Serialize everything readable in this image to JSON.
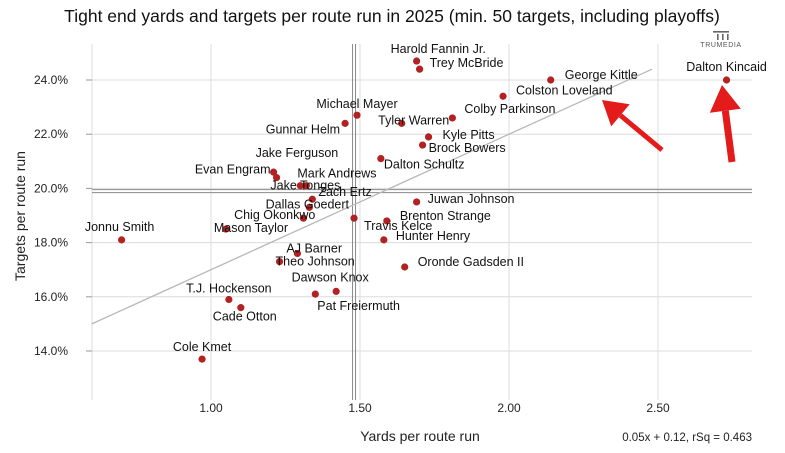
{
  "chart_data": {
    "type": "scatter",
    "title": "Tight end yards and targets per route run in 2025 (min. 50 targets, including playoffs)",
    "xlabel": "Yards per route run",
    "ylabel": "Targets per route run",
    "xlim": [
      0.6,
      2.8
    ],
    "ylim": [
      13.2,
      25.0
    ],
    "xticks": [
      1.0,
      1.5,
      2.0,
      2.5
    ],
    "xtick_labels": [
      "1.00",
      "1.50",
      "2.00",
      "2.50"
    ],
    "yticks": [
      14,
      16,
      18,
      20,
      22,
      24
    ],
    "ytick_labels": [
      "14.0%",
      "16.0%",
      "18.0%",
      "20.0%",
      "22.0%",
      "24.0%"
    ],
    "reference_lines": {
      "x_mean": 1.48,
      "y_mean": 19.9
    },
    "trendline": {
      "slope": 5.0,
      "intercept": 12.0,
      "equation": "0.05x + 0.12, rSq = 0.463"
    },
    "point_color": "#b22222",
    "arrow_color": "#e31b1b",
    "logo_text": "TRUMEDIA",
    "points": [
      {
        "name": "Harold Fannin Jr.",
        "x": 1.69,
        "y": 24.7
      },
      {
        "name": "Trey McBride",
        "x": 1.7,
        "y": 24.4
      },
      {
        "name": "George Kittle",
        "x": 2.14,
        "y": 24.0
      },
      {
        "name": "Dalton Kincaid",
        "x": 2.73,
        "y": 24.0
      },
      {
        "name": "Colston Loveland",
        "x": 1.98,
        "y": 23.4
      },
      {
        "name": "Michael Mayer",
        "x": 1.49,
        "y": 22.7
      },
      {
        "name": "Colby Parkinson",
        "x": 1.81,
        "y": 22.6
      },
      {
        "name": "Tyler Warren",
        "x": 1.64,
        "y": 22.4
      },
      {
        "name": "Gunnar Helm",
        "x": 1.45,
        "y": 22.4
      },
      {
        "name": "Kyle Pitts",
        "x": 1.73,
        "y": 21.9
      },
      {
        "name": "Brock Bowers",
        "x": 1.71,
        "y": 21.6
      },
      {
        "name": "Dalton Schultz",
        "x": 1.57,
        "y": 21.1
      },
      {
        "name": "Jake Ferguson",
        "x": 1.21,
        "y": 20.6
      },
      {
        "name": "Evan Engram",
        "x": 1.22,
        "y": 20.4
      },
      {
        "name": "Mark Andrews",
        "x": 1.32,
        "y": 20.1
      },
      {
        "name": "Jake Tonges",
        "x": 1.3,
        "y": 20.1
      },
      {
        "name": "Zach Ertz",
        "x": 1.34,
        "y": 19.6
      },
      {
        "name": "Dallas Goedert",
        "x": 1.33,
        "y": 19.3
      },
      {
        "name": "Juwan Johnson",
        "x": 1.69,
        "y": 19.5
      },
      {
        "name": "Chig Okonkwo",
        "x": 1.31,
        "y": 18.9
      },
      {
        "name": "Travis Kelce",
        "x": 1.48,
        "y": 18.9
      },
      {
        "name": "Brenton Strange",
        "x": 1.59,
        "y": 18.8
      },
      {
        "name": "Mason Taylor",
        "x": 1.05,
        "y": 18.5
      },
      {
        "name": "Jonnu Smith",
        "x": 0.7,
        "y": 18.1
      },
      {
        "name": "Hunter Henry",
        "x": 1.58,
        "y": 18.1
      },
      {
        "name": "AJ Barner",
        "x": 1.29,
        "y": 17.6
      },
      {
        "name": "Theo Johnson",
        "x": 1.23,
        "y": 17.3
      },
      {
        "name": "Oronde Gadsden II",
        "x": 1.65,
        "y": 17.1
      },
      {
        "name": "Dawson Knox",
        "x": 1.42,
        "y": 16.2
      },
      {
        "name": "Pat Freiermuth",
        "x": 1.35,
        "y": 16.1
      },
      {
        "name": "T.J. Hockenson",
        "x": 1.06,
        "y": 15.9
      },
      {
        "name": "Cade Otton",
        "x": 1.1,
        "y": 15.6
      },
      {
        "name": "Cole Kmet",
        "x": 0.97,
        "y": 13.7
      }
    ]
  }
}
